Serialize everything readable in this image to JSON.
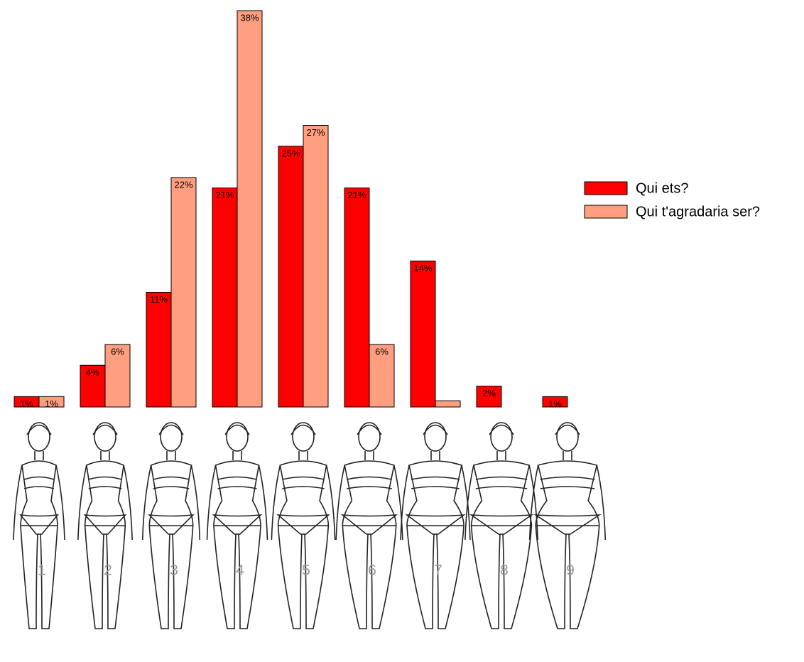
{
  "chart_data": {
    "type": "bar",
    "categories": [
      "1",
      "2",
      "3",
      "4",
      "5",
      "6",
      "7",
      "8",
      "9"
    ],
    "series": [
      {
        "name": "Qui ets?",
        "color": "#ff0000",
        "values": [
          1,
          4,
          11,
          21,
          25,
          21,
          14,
          2,
          1
        ],
        "value_labels": [
          "1%",
          "4%",
          "11%",
          "21%",
          "25%",
          "21%",
          "14%",
          "2%",
          "1%"
        ]
      },
      {
        "name": "Qui t'agradaria ser?",
        "color": "#ff9f80",
        "values": [
          1,
          6,
          22,
          38,
          27,
          6,
          0.6,
          null,
          null
        ],
        "value_labels": [
          "1%",
          "6%",
          "22%",
          "38%",
          "27%",
          "6%",
          null,
          null,
          null
        ]
      }
    ]
  }
}
